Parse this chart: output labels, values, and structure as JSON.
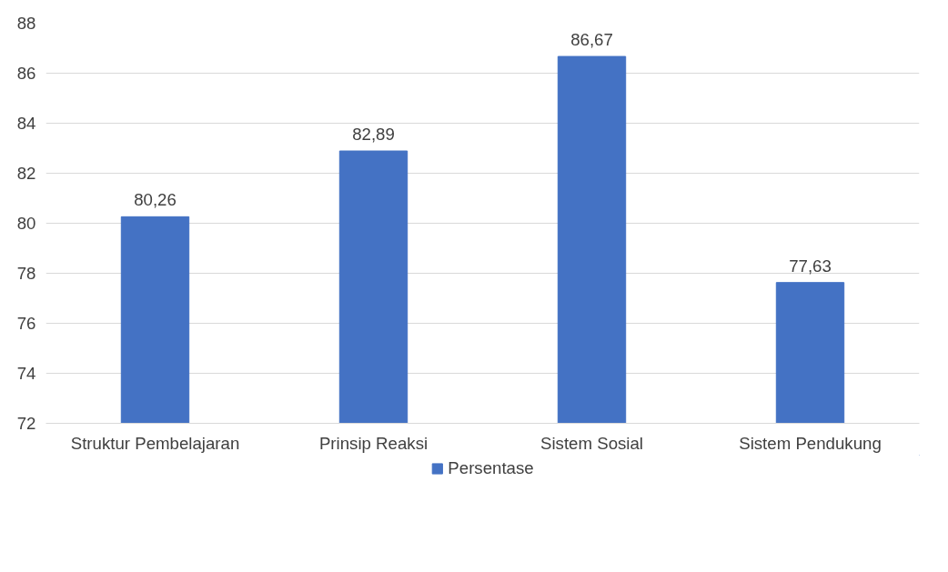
{
  "chart_data": {
    "type": "bar",
    "categories": [
      "Struktur Pembelajaran",
      "Prinsip Reaksi",
      "Sistem Sosial",
      "Sistem Pendukung"
    ],
    "series": [
      {
        "name": "Persentase",
        "color": "#4472c4",
        "values": [
          80.26,
          82.89,
          86.67,
          77.63
        ],
        "value_labels": [
          "80,26",
          "82,89",
          "86,67",
          "77,63"
        ]
      }
    ],
    "ylim": [
      72,
      88
    ],
    "yticks": [
      72,
      74,
      76,
      78,
      80,
      82,
      84,
      86,
      88
    ],
    "grid": "y",
    "legend": "bottom"
  }
}
